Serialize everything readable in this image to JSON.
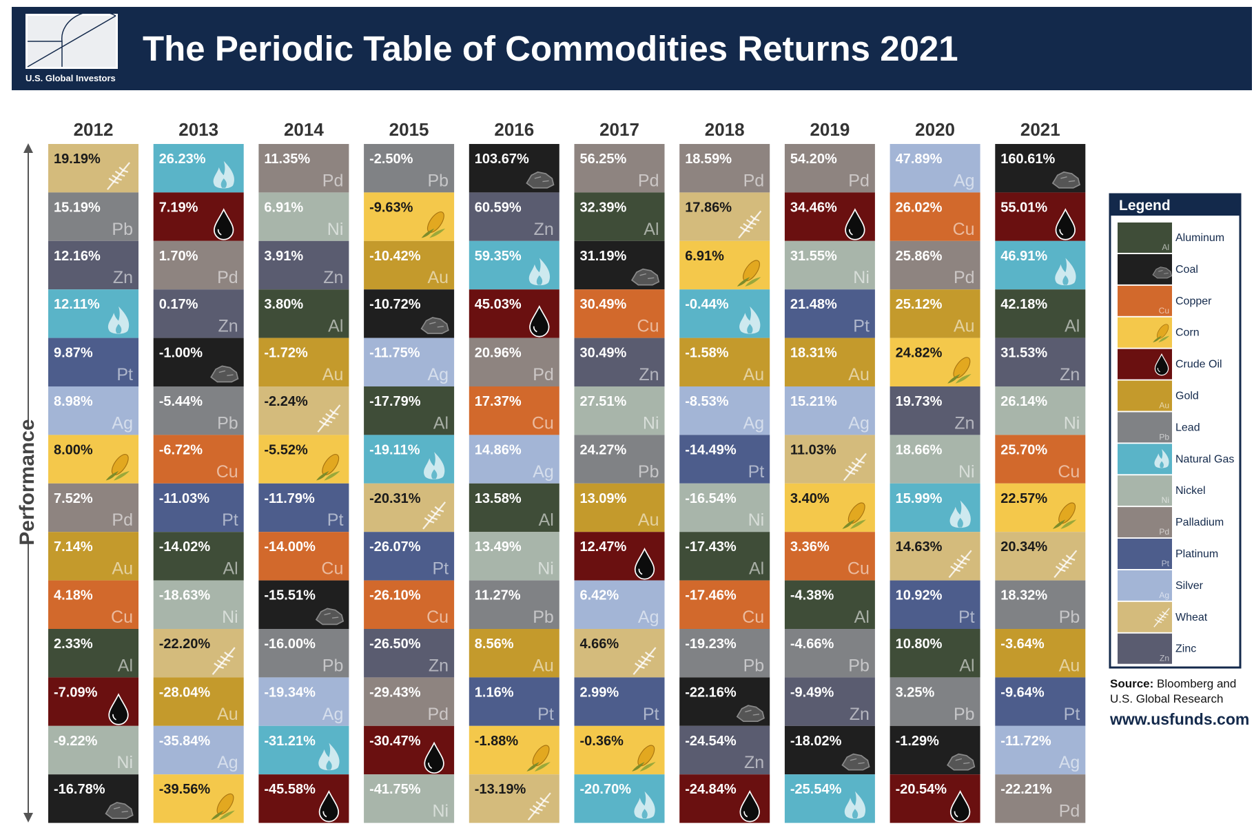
{
  "header": {
    "title": "The Periodic Table of Commodities Returns 2021",
    "brand": "U.S. Global Investors"
  },
  "axis_label": "Performance",
  "columns": [
    {
      "year": "2012",
      "cells": [
        [
          "19.19%",
          "Wheat"
        ],
        [
          "15.19%",
          "Lead"
        ],
        [
          "12.16%",
          "Zinc"
        ],
        [
          "12.11%",
          "Natural Gas"
        ],
        [
          "9.87%",
          "Platinum"
        ],
        [
          "8.98%",
          "Silver"
        ],
        [
          "8.00%",
          "Corn"
        ],
        [
          "7.52%",
          "Palladium"
        ],
        [
          "7.14%",
          "Gold"
        ],
        [
          "4.18%",
          "Copper"
        ],
        [
          "2.33%",
          "Aluminum"
        ],
        [
          "-7.09%",
          "Crude Oil"
        ],
        [
          "-9.22%",
          "Nickel"
        ],
        [
          "-16.78%",
          "Coal"
        ]
      ]
    },
    {
      "year": "2013",
      "cells": [
        [
          "26.23%",
          "Natural Gas"
        ],
        [
          "7.19%",
          "Crude Oil"
        ],
        [
          "1.70%",
          "Palladium"
        ],
        [
          "0.17%",
          "Zinc"
        ],
        [
          "-1.00%",
          "Coal"
        ],
        [
          "-5.44%",
          "Lead"
        ],
        [
          "-6.72%",
          "Copper"
        ],
        [
          "-11.03%",
          "Platinum"
        ],
        [
          "-14.02%",
          "Aluminum"
        ],
        [
          "-18.63%",
          "Nickel"
        ],
        [
          "-22.20%",
          "Wheat"
        ],
        [
          "-28.04%",
          "Gold"
        ],
        [
          "-35.84%",
          "Silver"
        ],
        [
          "-39.56%",
          "Corn"
        ]
      ]
    },
    {
      "year": "2014",
      "cells": [
        [
          "11.35%",
          "Palladium"
        ],
        [
          "6.91%",
          "Nickel"
        ],
        [
          "3.91%",
          "Zinc"
        ],
        [
          "3.80%",
          "Aluminum"
        ],
        [
          "-1.72%",
          "Gold"
        ],
        [
          "-2.24%",
          "Wheat"
        ],
        [
          "-5.52%",
          "Corn"
        ],
        [
          "-11.79%",
          "Platinum"
        ],
        [
          "-14.00%",
          "Copper"
        ],
        [
          "-15.51%",
          "Coal"
        ],
        [
          "-16.00%",
          "Lead"
        ],
        [
          "-19.34%",
          "Silver"
        ],
        [
          "-31.21%",
          "Natural Gas"
        ],
        [
          "-45.58%",
          "Crude Oil"
        ]
      ]
    },
    {
      "year": "2015",
      "cells": [
        [
          "-2.50%",
          "Lead"
        ],
        [
          "-9.63%",
          "Corn"
        ],
        [
          "-10.42%",
          "Gold"
        ],
        [
          "-10.72%",
          "Coal"
        ],
        [
          "-11.75%",
          "Silver"
        ],
        [
          "-17.79%",
          "Aluminum"
        ],
        [
          "-19.11%",
          "Natural Gas"
        ],
        [
          "-20.31%",
          "Wheat"
        ],
        [
          "-26.07%",
          "Platinum"
        ],
        [
          "-26.10%",
          "Copper"
        ],
        [
          "-26.50%",
          "Zinc"
        ],
        [
          "-29.43%",
          "Palladium"
        ],
        [
          "-30.47%",
          "Crude Oil"
        ],
        [
          "-41.75%",
          "Nickel"
        ]
      ]
    },
    {
      "year": "2016",
      "cells": [
        [
          "103.67%",
          "Coal"
        ],
        [
          "60.59%",
          "Zinc"
        ],
        [
          "59.35%",
          "Natural Gas"
        ],
        [
          "45.03%",
          "Crude Oil"
        ],
        [
          "20.96%",
          "Palladium"
        ],
        [
          "17.37%",
          "Copper"
        ],
        [
          "14.86%",
          "Silver"
        ],
        [
          "13.58%",
          "Aluminum"
        ],
        [
          "13.49%",
          "Nickel"
        ],
        [
          "11.27%",
          "Lead"
        ],
        [
          "8.56%",
          "Gold"
        ],
        [
          "1.16%",
          "Platinum"
        ],
        [
          "-1.88%",
          "Corn"
        ],
        [
          "-13.19%",
          "Wheat"
        ]
      ]
    },
    {
      "year": "2017",
      "cells": [
        [
          "56.25%",
          "Palladium"
        ],
        [
          "32.39%",
          "Aluminum"
        ],
        [
          "31.19%",
          "Coal"
        ],
        [
          "30.49%",
          "Copper"
        ],
        [
          "30.49%",
          "Zinc"
        ],
        [
          "27.51%",
          "Nickel"
        ],
        [
          "24.27%",
          "Lead"
        ],
        [
          "13.09%",
          "Gold"
        ],
        [
          "12.47%",
          "Crude Oil"
        ],
        [
          "6.42%",
          "Silver"
        ],
        [
          "4.66%",
          "Wheat"
        ],
        [
          "2.99%",
          "Platinum"
        ],
        [
          "-0.36%",
          "Corn"
        ],
        [
          "-20.70%",
          "Natural Gas"
        ]
      ]
    },
    {
      "year": "2018",
      "cells": [
        [
          "18.59%",
          "Palladium"
        ],
        [
          "17.86%",
          "Wheat"
        ],
        [
          "6.91%",
          "Corn"
        ],
        [
          "-0.44%",
          "Natural Gas"
        ],
        [
          "-1.58%",
          "Gold"
        ],
        [
          "-8.53%",
          "Silver"
        ],
        [
          "-14.49%",
          "Platinum"
        ],
        [
          "-16.54%",
          "Nickel"
        ],
        [
          "-17.43%",
          "Aluminum"
        ],
        [
          "-17.46%",
          "Copper"
        ],
        [
          "-19.23%",
          "Lead"
        ],
        [
          "-22.16%",
          "Coal"
        ],
        [
          "-24.54%",
          "Zinc"
        ],
        [
          "-24.84%",
          "Crude Oil"
        ]
      ]
    },
    {
      "year": "2019",
      "cells": [
        [
          "54.20%",
          "Palladium"
        ],
        [
          "34.46%",
          "Crude Oil"
        ],
        [
          "31.55%",
          "Nickel"
        ],
        [
          "21.48%",
          "Platinum"
        ],
        [
          "18.31%",
          "Gold"
        ],
        [
          "15.21%",
          "Silver"
        ],
        [
          "11.03%",
          "Wheat"
        ],
        [
          "3.40%",
          "Corn"
        ],
        [
          "3.36%",
          "Copper"
        ],
        [
          "-4.38%",
          "Aluminum"
        ],
        [
          "-4.66%",
          "Lead"
        ],
        [
          "-9.49%",
          "Zinc"
        ],
        [
          "-18.02%",
          "Coal"
        ],
        [
          "-25.54%",
          "Natural Gas"
        ]
      ]
    },
    {
      "year": "2020",
      "cells": [
        [
          "47.89%",
          "Silver"
        ],
        [
          "26.02%",
          "Copper"
        ],
        [
          "25.86%",
          "Palladium"
        ],
        [
          "25.12%",
          "Gold"
        ],
        [
          "24.82%",
          "Corn"
        ],
        [
          "19.73%",
          "Zinc"
        ],
        [
          "18.66%",
          "Nickel"
        ],
        [
          "15.99%",
          "Natural Gas"
        ],
        [
          "14.63%",
          "Wheat"
        ],
        [
          "10.92%",
          "Platinum"
        ],
        [
          "10.80%",
          "Aluminum"
        ],
        [
          "3.25%",
          "Lead"
        ],
        [
          "-1.29%",
          "Coal"
        ],
        [
          "-20.54%",
          "Crude Oil"
        ]
      ]
    },
    {
      "year": "2021",
      "cells": [
        [
          "160.61%",
          "Coal"
        ],
        [
          "55.01%",
          "Crude Oil"
        ],
        [
          "46.91%",
          "Natural Gas"
        ],
        [
          "42.18%",
          "Aluminum"
        ],
        [
          "31.53%",
          "Zinc"
        ],
        [
          "26.14%",
          "Nickel"
        ],
        [
          "25.70%",
          "Copper"
        ],
        [
          "22.57%",
          "Corn"
        ],
        [
          "20.34%",
          "Wheat"
        ],
        [
          "18.32%",
          "Lead"
        ],
        [
          "-3.64%",
          "Gold"
        ],
        [
          "-9.64%",
          "Platinum"
        ],
        [
          "-11.72%",
          "Silver"
        ],
        [
          "-22.21%",
          "Palladium"
        ]
      ]
    }
  ],
  "legend": {
    "title": "Legend",
    "items": [
      {
        "name": "Aluminum",
        "symbol": "Al",
        "color": "#3f4d38"
      },
      {
        "name": "Coal",
        "color": "#1f1f1f"
      },
      {
        "name": "Copper",
        "symbol": "Cu",
        "color": "#d2692c"
      },
      {
        "name": "Corn",
        "color": "#f4c84b"
      },
      {
        "name": "Crude Oil",
        "color": "#6a1010"
      },
      {
        "name": "Gold",
        "symbol": "Au",
        "color": "#c49a2c"
      },
      {
        "name": "Lead",
        "symbol": "Pb",
        "color": "#808285"
      },
      {
        "name": "Natural Gas",
        "color": "#5ab4c8"
      },
      {
        "name": "Nickel",
        "symbol": "Ni",
        "color": "#a8b5aa"
      },
      {
        "name": "Palladium",
        "symbol": "Pd",
        "color": "#8e8480"
      },
      {
        "name": "Platinum",
        "symbol": "Pt",
        "color": "#4d5d8c"
      },
      {
        "name": "Silver",
        "symbol": "Ag",
        "color": "#a3b5d6"
      },
      {
        "name": "Wheat",
        "color": "#d4bb7c"
      },
      {
        "name": "Zinc",
        "symbol": "Zn",
        "color": "#5a5c70"
      }
    ]
  },
  "source": {
    "label": "Source:",
    "lines": [
      "Bloomberg and",
      "U.S. Global Research"
    ]
  },
  "url": "www.usfunds.com"
}
